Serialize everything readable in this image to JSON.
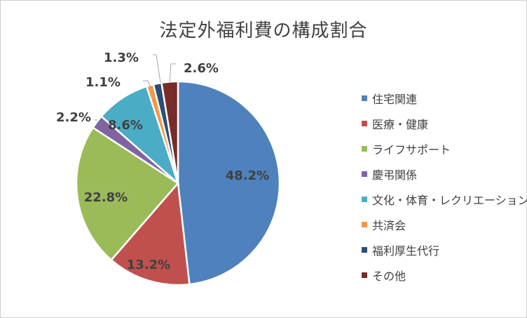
{
  "chart_data": {
    "type": "pie",
    "title": "法定外福利費の構成割合",
    "categories": [
      "住宅関連",
      "医療・健康",
      "ライフサポート",
      "慶弔関係",
      "文化・体育・レクリエーション",
      "共済会",
      "福利厚生代行",
      "その他"
    ],
    "values": [
      48.2,
      13.2,
      22.8,
      2.2,
      8.6,
      1.1,
      1.3,
      2.6
    ],
    "value_labels": [
      "48.2%",
      "13.2%",
      "22.8%",
      "2.2%",
      "8.6%",
      "1.1%",
      "1.3%",
      "2.6%"
    ],
    "colors": [
      "#4F81BD",
      "#C0504D",
      "#9BBB59",
      "#8064A2",
      "#4BACC6",
      "#F79646",
      "#2C4D75",
      "#772C2A"
    ],
    "legend_position": "right",
    "start": "12 o'clock",
    "direction": "clockwise"
  }
}
